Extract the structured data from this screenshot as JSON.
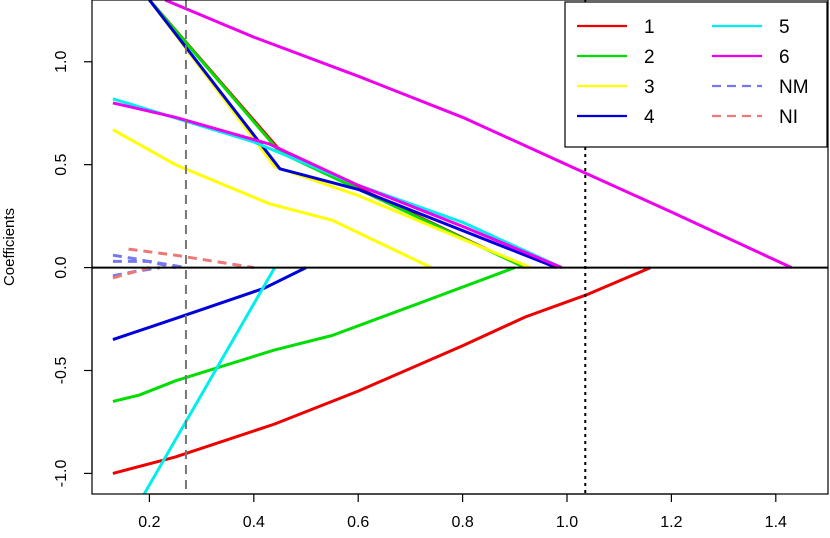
{
  "chart_data": {
    "type": "line",
    "title": "",
    "xlabel": "",
    "ylabel": "Coefficients",
    "xlim": [
      0.09,
      1.5
    ],
    "ylim": [
      -1.1,
      1.3
    ],
    "x_ticks": [
      0.2,
      0.4,
      0.6,
      0.8,
      1.0,
      1.2,
      1.4
    ],
    "x_tick_labels": [
      "0.2",
      "0.4",
      "0.6",
      "0.8",
      "1.0",
      "1.2",
      "1.4"
    ],
    "y_ticks": [
      -1.0,
      -0.5,
      0.0,
      0.5,
      1.0
    ],
    "y_tick_labels": [
      "-1.0",
      "-0.5",
      "0.0",
      "0.5",
      "1.0"
    ],
    "grid": false,
    "legend_position": "top-right",
    "zero_line": 0,
    "reference_lines": [
      {
        "x": 0.27,
        "style": "dashed",
        "color": "#777777"
      },
      {
        "x": 1.035,
        "style": "dotted",
        "color": "#000000"
      }
    ],
    "series": [
      {
        "name": "1",
        "color": "#ee0000",
        "dash": "solid",
        "x": [
          0.13,
          0.25,
          0.44,
          0.6,
          0.8,
          0.92,
          1.04,
          1.16
        ],
        "y": [
          -1.0,
          -0.92,
          -0.76,
          -0.6,
          -0.38,
          -0.24,
          -0.13,
          0.0
        ]
      },
      {
        "name": "1",
        "color": "#ee0000",
        "dash": "solid",
        "x": [
          0.2,
          0.45,
          0.92
        ],
        "y": [
          1.3,
          0.57,
          0.0
        ]
      },
      {
        "name": "2",
        "color": "#00dd00",
        "dash": "solid",
        "x": [
          0.13,
          0.18,
          0.25,
          0.44,
          0.55,
          0.72,
          0.9
        ],
        "y": [
          -0.65,
          -0.62,
          -0.55,
          -0.4,
          -0.33,
          -0.17,
          0.0
        ]
      },
      {
        "name": "2",
        "color": "#00dd00",
        "dash": "solid",
        "x": [
          0.2,
          0.45,
          0.92
        ],
        "y": [
          1.3,
          0.56,
          0.0
        ]
      },
      {
        "name": "3",
        "color": "#ffff00",
        "dash": "solid",
        "x": [
          0.13,
          0.25,
          0.43,
          0.55,
          0.74
        ],
        "y": [
          0.67,
          0.5,
          0.31,
          0.23,
          0.0
        ]
      },
      {
        "name": "3",
        "color": "#ffff00",
        "dash": "solid",
        "x": [
          0.2,
          0.44,
          0.6,
          0.93
        ],
        "y": [
          1.3,
          0.49,
          0.35,
          0.0
        ]
      },
      {
        "name": "4",
        "color": "#0000dd",
        "dash": "solid",
        "x": [
          0.13,
          0.2,
          0.27,
          0.42,
          0.5
        ],
        "y": [
          -0.35,
          -0.29,
          -0.23,
          -0.1,
          0.0
        ]
      },
      {
        "name": "4",
        "color": "#0000dd",
        "dash": "solid",
        "x": [
          0.2,
          0.45,
          0.6,
          0.98
        ],
        "y": [
          1.3,
          0.48,
          0.38,
          0.0
        ]
      },
      {
        "name": "5",
        "color": "#00eeee",
        "dash": "solid",
        "x": [
          0.19,
          0.44
        ],
        "y": [
          -1.1,
          0.0
        ]
      },
      {
        "name": "5",
        "color": "#00eeee",
        "dash": "solid",
        "x": [
          0.13,
          0.4,
          0.6,
          0.8,
          0.99
        ],
        "y": [
          0.82,
          0.61,
          0.4,
          0.22,
          0.0
        ]
      },
      {
        "name": "6",
        "color": "#ee00ee",
        "dash": "solid",
        "x": [
          0.13,
          0.25,
          0.43,
          0.6,
          0.8,
          0.99
        ],
        "y": [
          0.8,
          0.73,
          0.6,
          0.4,
          0.2,
          0.0
        ]
      },
      {
        "name": "6",
        "color": "#ee00ee",
        "dash": "solid",
        "x": [
          0.23,
          0.4,
          0.6,
          0.8,
          1.0,
          1.2,
          1.43
        ],
        "y": [
          1.3,
          1.12,
          0.93,
          0.73,
          0.5,
          0.27,
          0.0
        ]
      },
      {
        "name": "NM",
        "color": "#7777ee",
        "dash": "dashed",
        "x": [
          0.13,
          0.18,
          0.25
        ],
        "y": [
          0.06,
          0.04,
          0.0
        ]
      },
      {
        "name": "NM",
        "color": "#7777ee",
        "dash": "dashed",
        "x": [
          0.13,
          0.17,
          0.22
        ],
        "y": [
          -0.04,
          -0.02,
          0.0
        ]
      },
      {
        "name": "NM",
        "color": "#7777ee",
        "dash": "dashed",
        "x": [
          0.13,
          0.2,
          0.27
        ],
        "y": [
          0.03,
          0.03,
          0.0
        ]
      },
      {
        "name": "NI",
        "color": "#ee7777",
        "dash": "dashed",
        "x": [
          0.16,
          0.25,
          0.4
        ],
        "y": [
          0.09,
          0.06,
          0.0
        ]
      },
      {
        "name": "NI",
        "color": "#ee7777",
        "dash": "dashed",
        "x": [
          0.13,
          0.2
        ],
        "y": [
          -0.05,
          0.0
        ]
      }
    ],
    "legend": [
      {
        "label": "1",
        "color": "#ee0000",
        "dash": "solid"
      },
      {
        "label": "2",
        "color": "#00dd00",
        "dash": "solid"
      },
      {
        "label": "3",
        "color": "#ffff00",
        "dash": "solid"
      },
      {
        "label": "4",
        "color": "#0000dd",
        "dash": "solid"
      },
      {
        "label": "5",
        "color": "#00eeee",
        "dash": "solid"
      },
      {
        "label": "6",
        "color": "#ee00ee",
        "dash": "solid"
      },
      {
        "label": "NM",
        "color": "#7777ee",
        "dash": "dashed"
      },
      {
        "label": "NI",
        "color": "#ee7777",
        "dash": "dashed"
      }
    ]
  }
}
